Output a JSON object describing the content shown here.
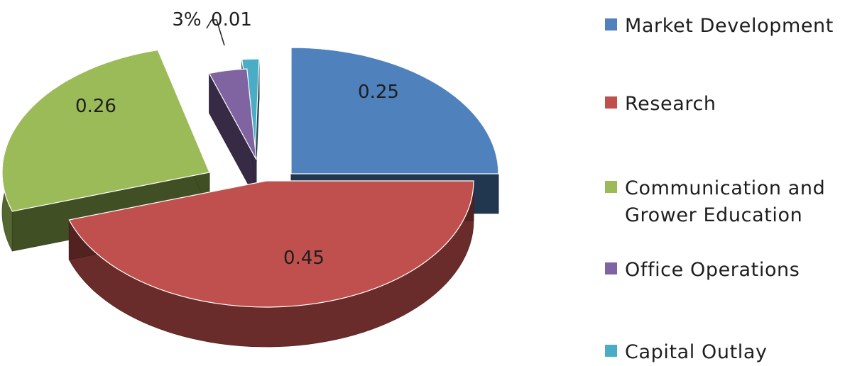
{
  "chart_data": {
    "type": "pie",
    "style": "3d-exploded",
    "categories": [
      "Market Development",
      "Research",
      "Communication and Grower Education",
      "Office Operations",
      "Capital Outlay"
    ],
    "values": [
      0.25,
      0.45,
      0.26,
      0.03,
      0.01
    ],
    "data_labels": [
      "0.25",
      "0.45",
      "0.26",
      "3%",
      "0.01"
    ],
    "colors": [
      "#4f81bd",
      "#c0504d",
      "#9bbb59",
      "#8064a2",
      "#4bacc6"
    ],
    "legend_position": "right"
  }
}
